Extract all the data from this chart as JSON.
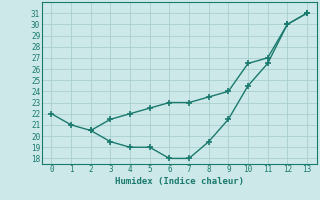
{
  "line1_x": [
    0,
    1,
    2,
    3,
    4,
    5,
    6,
    7,
    8,
    9,
    10,
    11,
    12,
    13
  ],
  "line1_y": [
    22,
    21,
    20.5,
    21.5,
    22,
    22.5,
    23,
    23,
    23.5,
    24,
    26.5,
    27,
    30,
    31
  ],
  "line2_x": [
    2,
    3,
    4,
    5,
    6,
    7,
    8,
    9,
    10,
    11,
    12,
    13
  ],
  "line2_y": [
    20.5,
    19.5,
    19,
    19,
    18,
    18,
    19.5,
    21.5,
    24.5,
    26.5,
    30,
    31
  ],
  "line_color": "#1a7a6e",
  "bg_color": "#cce8e8",
  "grid_color": "#aacece",
  "xlabel": "Humidex (Indice chaleur)",
  "ylim": [
    17.5,
    32
  ],
  "xlim": [
    -0.5,
    13.5
  ],
  "yticks": [
    18,
    19,
    20,
    21,
    22,
    23,
    24,
    25,
    26,
    27,
    28,
    29,
    30,
    31
  ],
  "xticks": [
    0,
    1,
    2,
    3,
    4,
    5,
    6,
    7,
    8,
    9,
    10,
    11,
    12,
    13
  ],
  "marker": "+",
  "markersize": 5,
  "markeredgewidth": 1.2,
  "linewidth": 1.0
}
